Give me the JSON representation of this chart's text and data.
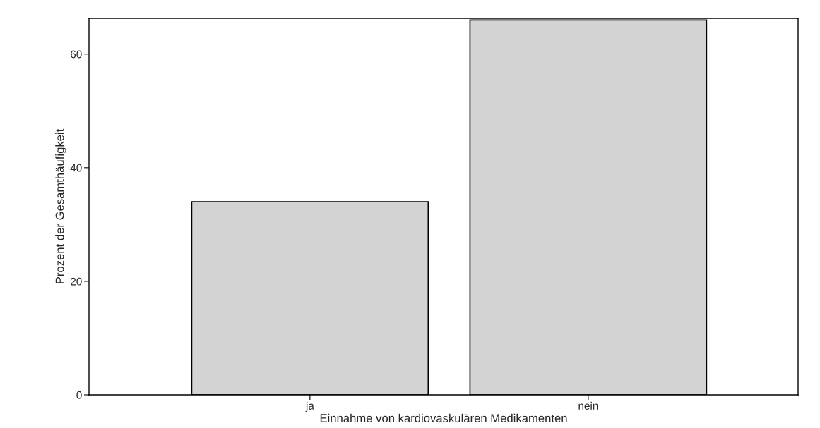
{
  "chart_data": {
    "type": "bar",
    "xlabel": "Einnahme von kardiovaskulären Medikamenten",
    "ylabel": "Prozent der Gesamthäufigkeit",
    "categories": [
      "ja",
      "nein"
    ],
    "values": [
      34,
      66
    ],
    "color": "#d3d3d3",
    "ylim": [
      0,
      66.3
    ],
    "yticks": [
      0,
      20,
      40,
      60
    ],
    "grid": false,
    "legend": false
  }
}
